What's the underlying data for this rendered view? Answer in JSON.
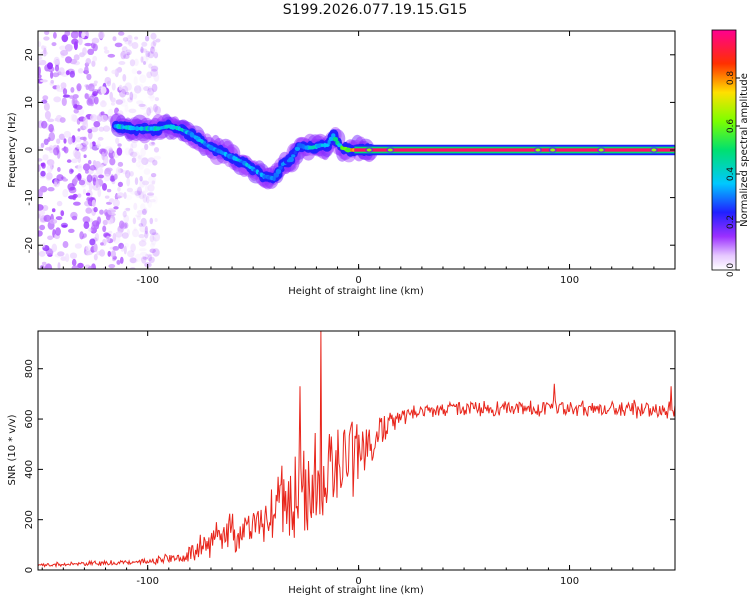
{
  "figure": {
    "title": "S199.2026.077.19.15.G15"
  },
  "chart_data": [
    {
      "type": "heatmap",
      "xlabel": "Height of straight line (km)",
      "ylabel": "Frequency (Hz)",
      "xlim": [
        -152,
        150
      ],
      "ylim": [
        -25,
        25
      ],
      "x_ticks": [
        -100,
        0,
        100
      ],
      "x_tick_labels": [
        "-100",
        "0",
        "100"
      ],
      "y_ticks": [
        -20,
        -10,
        0,
        10,
        20
      ],
      "y_tick_labels": [
        "-20",
        "-10",
        "0",
        "10",
        "20"
      ],
      "colorbar": {
        "label": "Normalized spectral amplitude",
        "range": [
          0,
          1
        ],
        "ticks": [
          0.0,
          0.2,
          0.4,
          0.6,
          0.8
        ],
        "tick_labels": [
          "0.0",
          "0.2",
          "0.4",
          "0.6",
          "0.8"
        ],
        "colormap": "rainbow (purple-blue-cyan-green-yellow-red-magenta)"
      },
      "ridge": {
        "x": [
          -115,
          -105,
          -95,
          -90,
          -85,
          -80,
          -75,
          -70,
          -65,
          -60,
          -55,
          -50,
          -45,
          -40,
          -36,
          -32,
          -28,
          -25,
          -22,
          -18,
          -15,
          -12,
          -10,
          -8,
          -5,
          0,
          10,
          30,
          60,
          90,
          120,
          150
        ],
        "y": [
          5,
          4.5,
          4.5,
          5,
          4.5,
          3.5,
          2,
          0.5,
          -0.5,
          -1.5,
          -2.5,
          -4,
          -5.5,
          -6,
          -3,
          -2,
          1,
          0.5,
          0.5,
          1,
          1,
          3,
          1.5,
          0.5,
          0,
          0,
          0,
          0,
          0,
          0,
          0,
          0
        ],
        "amplitude": [
          0.4,
          0.4,
          0.4,
          0.4,
          0.4,
          0.35,
          0.35,
          0.35,
          0.35,
          0.35,
          0.35,
          0.35,
          0.3,
          0.3,
          0.3,
          0.3,
          0.35,
          0.35,
          0.4,
          0.4,
          0.4,
          0.4,
          0.45,
          0.5,
          0.6,
          0.9,
          0.95,
          0.95,
          0.95,
          0.95,
          0.95,
          0.95
        ]
      },
      "noise_region": {
        "x_range": [
          -152,
          -95
        ],
        "amplitude_range": [
          0.02,
          0.15
        ]
      }
    },
    {
      "type": "line",
      "xlabel": "Height of straight line (km)",
      "ylabel": "SNR (10 * v/v)",
      "xlim": [
        -152,
        150
      ],
      "ylim": [
        0,
        950
      ],
      "x_ticks": [
        -100,
        0,
        100
      ],
      "x_tick_labels": [
        "-100",
        "0",
        "100"
      ],
      "y_ticks": [
        0,
        200,
        400,
        600,
        800
      ],
      "y_tick_labels": [
        "0",
        "200",
        "400",
        "600",
        "800"
      ],
      "series": [
        {
          "name": "SNR",
          "color": "#e8261c",
          "x": [
            -152,
            -140,
            -130,
            -120,
            -110,
            -100,
            -95,
            -90,
            -85,
            -80,
            -75,
            -70,
            -65,
            -60,
            -55,
            -50,
            -45,
            -40,
            -35,
            -30,
            -25,
            -22,
            -20,
            -18,
            -15,
            -10,
            -5,
            0,
            5,
            10,
            15,
            20,
            25,
            30,
            35,
            40,
            50,
            60,
            70,
            80,
            90,
            95,
            100,
            110,
            120,
            130,
            140,
            150
          ],
          "y": [
            20,
            22,
            25,
            28,
            30,
            35,
            40,
            45,
            55,
            70,
            90,
            110,
            130,
            150,
            160,
            180,
            200,
            230,
            260,
            300,
            330,
            345,
            360,
            375,
            390,
            410,
            440,
            470,
            520,
            560,
            590,
            610,
            620,
            630,
            635,
            640,
            640,
            640,
            640,
            640,
            640,
            650,
            640,
            640,
            640,
            640,
            640,
            640
          ],
          "noise_amplitude": [
            10,
            10,
            10,
            12,
            12,
            15,
            20,
            25,
            30,
            40,
            60,
            70,
            80,
            90,
            80,
            80,
            100,
            150,
            180,
            220,
            250,
            250,
            240,
            230,
            220,
            200,
            180,
            150,
            120,
            90,
            60,
            50,
            40,
            35,
            35,
            35,
            35,
            35,
            35,
            35,
            40,
            45,
            40,
            35,
            35,
            40,
            45,
            45
          ],
          "spikes": [
            {
              "x": -18,
              "y": 950
            },
            {
              "x": -28,
              "y": 730
            },
            {
              "x": 93,
              "y": 740
            },
            {
              "x": 148,
              "y": 730
            }
          ]
        }
      ]
    }
  ]
}
